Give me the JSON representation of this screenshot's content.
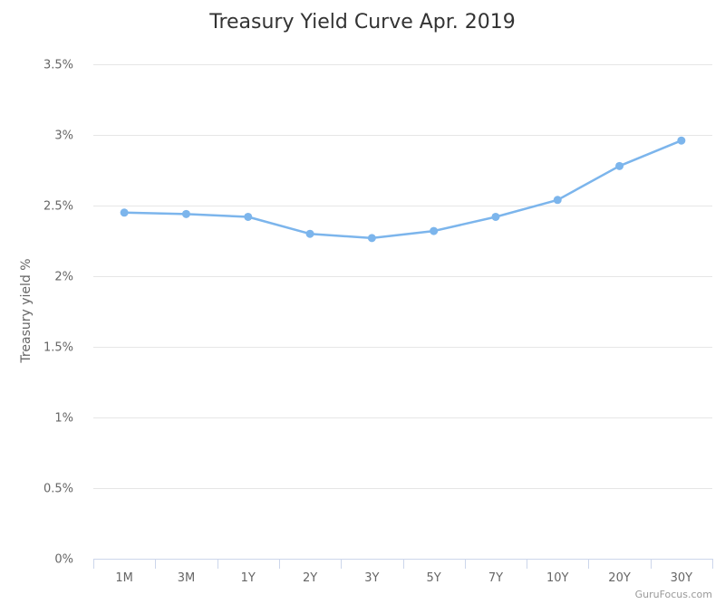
{
  "chart_data": {
    "type": "line",
    "title": "Treasury Yield Curve Apr. 2019",
    "ylabel": "Treasury yield %",
    "xlabel": "",
    "categories": [
      "1M",
      "3M",
      "1Y",
      "2Y",
      "3Y",
      "5Y",
      "7Y",
      "10Y",
      "20Y",
      "30Y"
    ],
    "series": [
      {
        "values": [
          2.45,
          2.44,
          2.42,
          2.3,
          2.27,
          2.32,
          2.42,
          2.54,
          2.78,
          2.96
        ]
      }
    ],
    "ylim": [
      0,
      3.5
    ],
    "yticks": [
      "0%",
      "0.5%",
      "1%",
      "1.5%",
      "2%",
      "2.5%",
      "3%",
      "3.5%"
    ],
    "grid": true,
    "legend": "none",
    "color": "#7cb5ec"
  },
  "credit": "GuruFocus.com"
}
